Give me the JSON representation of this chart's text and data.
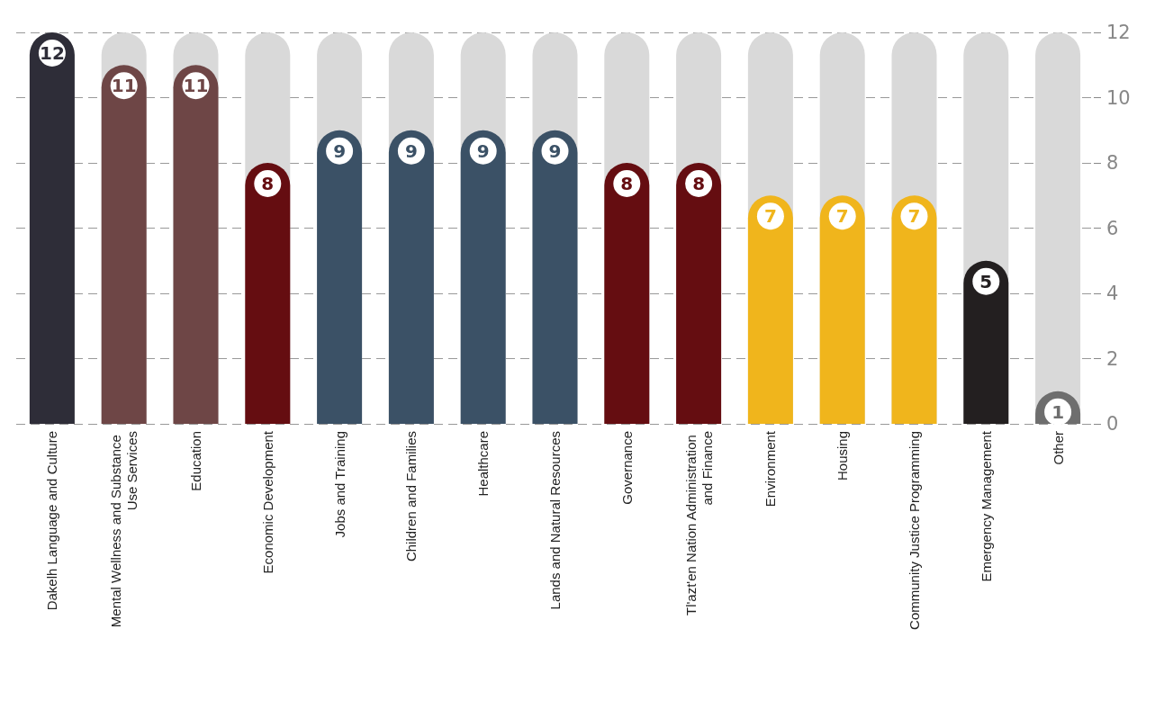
{
  "chart_data": {
    "type": "bar",
    "categories": [
      "Dakelh Language and Culture",
      "Mental Wellness and Substance Use Services",
      "Education",
      "Economic Development",
      "Jobs and Training",
      "Children and Families",
      "Healthcare",
      "Lands and Natural Resources",
      "Governance",
      "Tl'azt'en Nation Administration and Finance",
      "Environment",
      "Housing",
      "Community Justice Programming",
      "Emergency Management",
      "Other"
    ],
    "values": [
      12,
      11,
      11,
      8,
      9,
      9,
      9,
      9,
      8,
      8,
      7,
      7,
      7,
      5,
      1
    ],
    "colors": [
      "#2e2d38",
      "#6e4646",
      "#6e4646",
      "#650d11",
      "#3b5166",
      "#3b5166",
      "#3b5166",
      "#3b5166",
      "#650d11",
      "#650d11",
      "#f0b51c",
      "#f0b51c",
      "#f0b51c",
      "#231f20",
      "#6e6e6e"
    ],
    "ylim": [
      0,
      12
    ],
    "yticks": [
      0,
      2,
      4,
      6,
      8,
      10,
      12
    ],
    "grid": "y",
    "data_labels": true
  }
}
